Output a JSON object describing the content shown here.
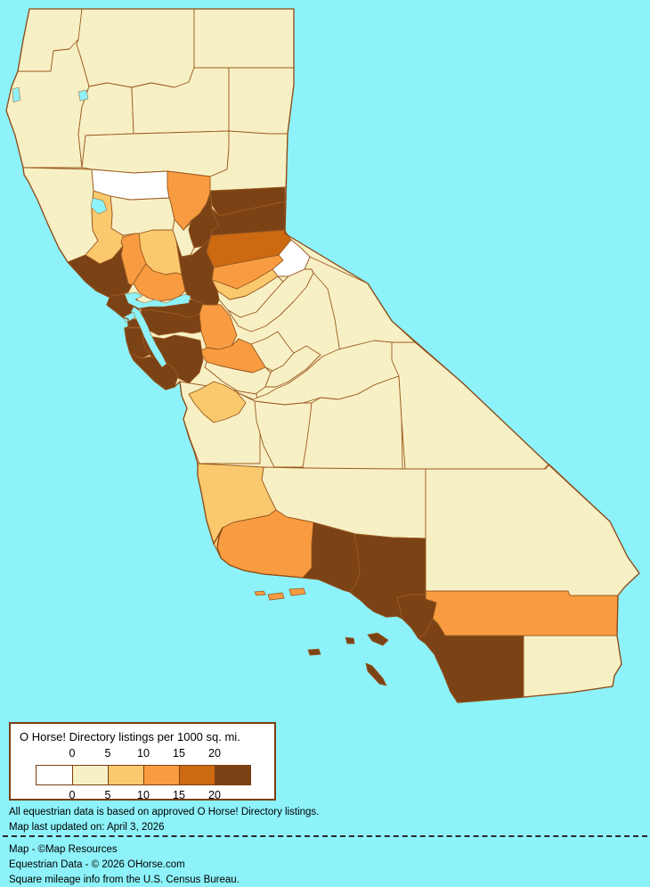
{
  "canvas": {
    "ocean_color": "#8DF2F9",
    "county_border_color": "#9A5A20",
    "state_border_color": "#8B4A16",
    "water_color": "#8DF2F9"
  },
  "legend": {
    "title": "O Horse! Directory listings per 1000 sq. mi.",
    "tick_labels": [
      "0",
      "5",
      "10",
      "15",
      "20"
    ],
    "levels": [
      {
        "id": "L0",
        "range": "below 0",
        "color": "#FFFFFF"
      },
      {
        "id": "L1",
        "range": "0 to 5",
        "color": "#F8F0C5"
      },
      {
        "id": "L2",
        "range": "5 to 10",
        "color": "#FAC96E"
      },
      {
        "id": "L3",
        "range": "10 to 15",
        "color": "#F99C41"
      },
      {
        "id": "L4",
        "range": "15 to 20",
        "color": "#CC6911"
      },
      {
        "id": "L5",
        "range": "over 20",
        "color": "#7B4216"
      }
    ]
  },
  "notes": [
    "All equestrian data is based on approved O Horse! Directory listings.",
    "Map last updated on: April 3, 2026"
  ],
  "credits": [
    "Map - ©Map Resources",
    "Equestrian Data - © 2026 OHorse.com",
    "Square mileage info from the U.S. Census Bureau."
  ],
  "map": {
    "counties": [
      {
        "name": "Del Norte",
        "level": "L1"
      },
      {
        "name": "Siskiyou",
        "level": "L1"
      },
      {
        "name": "Modoc",
        "level": "L1"
      },
      {
        "name": "Humboldt",
        "level": "L1"
      },
      {
        "name": "Trinity",
        "level": "L1"
      },
      {
        "name": "Shasta",
        "level": "L1"
      },
      {
        "name": "Lassen",
        "level": "L1"
      },
      {
        "name": "Tehama",
        "level": "L1"
      },
      {
        "name": "Plumas",
        "level": "L1"
      },
      {
        "name": "Mendocino",
        "level": "L1"
      },
      {
        "name": "Colusa",
        "level": "L1"
      },
      {
        "name": "Sutter",
        "level": "L1"
      },
      {
        "name": "Calaveras",
        "level": "L1"
      },
      {
        "name": "Tuolumne",
        "level": "L1"
      },
      {
        "name": "Mono",
        "level": "L1"
      },
      {
        "name": "Merced",
        "level": "L1"
      },
      {
        "name": "Mariposa",
        "level": "L1"
      },
      {
        "name": "Madera",
        "level": "L1"
      },
      {
        "name": "Monterey",
        "level": "L1"
      },
      {
        "name": "Fresno",
        "level": "L1"
      },
      {
        "name": "Kings",
        "level": "L1"
      },
      {
        "name": "Tulare",
        "level": "L1"
      },
      {
        "name": "Inyo",
        "level": "L1"
      },
      {
        "name": "Kern",
        "level": "L1"
      },
      {
        "name": "San Bernardino",
        "level": "L1"
      },
      {
        "name": "Imperial",
        "level": "L1"
      },
      {
        "name": "Glenn",
        "level": "L0"
      },
      {
        "name": "Alpine",
        "level": "L0"
      },
      {
        "name": "Lake",
        "level": "L2"
      },
      {
        "name": "Yolo",
        "level": "L2"
      },
      {
        "name": "Amador",
        "level": "L2"
      },
      {
        "name": "San Benito",
        "level": "L2"
      },
      {
        "name": "San Luis Obispo",
        "level": "L2"
      },
      {
        "name": "Butte",
        "level": "L3"
      },
      {
        "name": "Napa",
        "level": "L3"
      },
      {
        "name": "Solano",
        "level": "L3"
      },
      {
        "name": "El Dorado",
        "level": "L3"
      },
      {
        "name": "San Joaquin",
        "level": "L3"
      },
      {
        "name": "Stanislaus",
        "level": "L3"
      },
      {
        "name": "Santa Barbara",
        "level": "L3"
      },
      {
        "name": "Riverside",
        "level": "L3"
      },
      {
        "name": "Placer",
        "level": "L4"
      },
      {
        "name": "Sierra",
        "level": "L5"
      },
      {
        "name": "Nevada",
        "level": "L5"
      },
      {
        "name": "Yuba",
        "level": "L5"
      },
      {
        "name": "Sonoma",
        "level": "L5"
      },
      {
        "name": "Marin",
        "level": "L5"
      },
      {
        "name": "Sacramento",
        "level": "L5"
      },
      {
        "name": "Contra Costa",
        "level": "L5"
      },
      {
        "name": "San Francisco",
        "level": "L5"
      },
      {
        "name": "San Mateo",
        "level": "L5"
      },
      {
        "name": "Alameda",
        "level": "L5"
      },
      {
        "name": "Santa Clara",
        "level": "L5"
      },
      {
        "name": "Santa Cruz",
        "level": "L5"
      },
      {
        "name": "Ventura",
        "level": "L5"
      },
      {
        "name": "Los Angeles",
        "level": "L5"
      },
      {
        "name": "Orange",
        "level": "L5"
      },
      {
        "name": "San Diego",
        "level": "L5"
      }
    ],
    "islands": [
      {
        "name": "Anacapa Island",
        "level": "L3"
      },
      {
        "name": "Santa Cruz Island",
        "level": "L3"
      },
      {
        "name": "Santa Rosa Island",
        "level": "L3"
      },
      {
        "name": "San Nicolas Island",
        "level": "L5"
      },
      {
        "name": "Santa Barbara Island",
        "level": "L5"
      },
      {
        "name": "Santa Catalina Island",
        "level": "L5"
      },
      {
        "name": "San Clemente Island",
        "level": "L5"
      }
    ]
  }
}
